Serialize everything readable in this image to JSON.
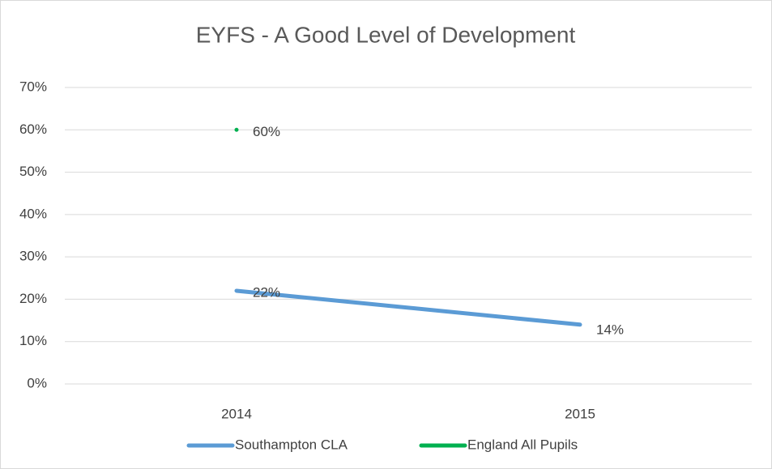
{
  "chart_data": {
    "type": "line",
    "title": "EYFS - A Good  Level of Development",
    "categories": [
      "2014",
      "2015"
    ],
    "series": [
      {
        "name": "Southampton CLA",
        "color": "#5b9bd5",
        "values": [
          22,
          14
        ],
        "value_labels": [
          "22%",
          "14%"
        ]
      },
      {
        "name": "England All Pupils",
        "color": "#00b050",
        "values": [
          60,
          null
        ],
        "value_labels": [
          "60%",
          null
        ]
      }
    ],
    "ylim": [
      0,
      70
    ],
    "yticks": [
      {
        "value": 0,
        "label": "0%"
      },
      {
        "value": 10,
        "label": "10%"
      },
      {
        "value": 20,
        "label": "20%"
      },
      {
        "value": 30,
        "label": "30%"
      },
      {
        "value": 40,
        "label": "40%"
      },
      {
        "value": 50,
        "label": "50%"
      },
      {
        "value": 60,
        "label": "60%"
      },
      {
        "value": 70,
        "label": "70%"
      }
    ],
    "grid": true,
    "legend": "bottom"
  }
}
